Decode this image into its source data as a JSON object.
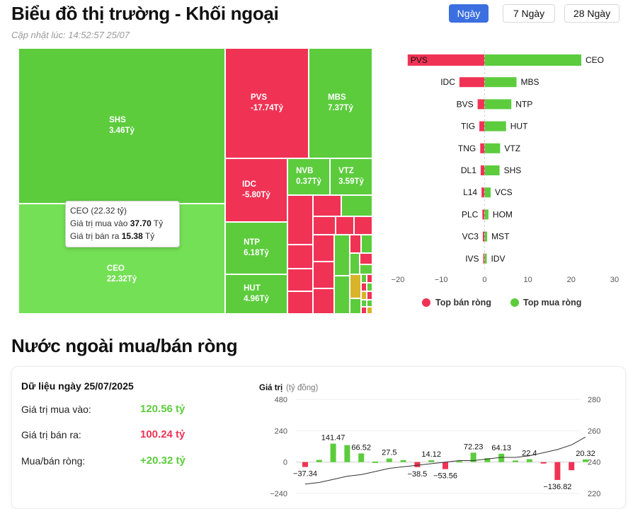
{
  "header": {
    "title": "Biểu đồ thị trường - Khối ngoại",
    "updated": "Cập nhật lúc: 14:52:57 25/07",
    "tabs": [
      {
        "label": "Ngày",
        "active": true
      },
      {
        "label": "7 Ngày",
        "active": false
      },
      {
        "label": "28 Ngày",
        "active": false
      }
    ]
  },
  "colors": {
    "buy": "#5ccc3d",
    "sell": "#f03355",
    "neutral": "#d9b32a",
    "accent": "#3b6fe0"
  },
  "treemap": {
    "tiles": [
      {
        "code": "SHS",
        "value": "3.46Tỷ",
        "side": "buy"
      },
      {
        "code": "CEO",
        "value": "22.32Tỷ",
        "side": "buy",
        "highlight": true
      },
      {
        "code": "PVS",
        "value": "-17.74Tỷ",
        "side": "sell"
      },
      {
        "code": "MBS",
        "value": "7.37Tỷ",
        "side": "buy"
      },
      {
        "code": "IDC",
        "value": "-5.80Tỷ",
        "side": "sell"
      },
      {
        "code": "NVB",
        "value": "0.37Tỷ",
        "side": "buy"
      },
      {
        "code": "VTZ",
        "value": "3.59Tỷ",
        "side": "buy"
      },
      {
        "code": "NTP",
        "value": "6.18Tỷ",
        "side": "buy"
      },
      {
        "code": "HUT",
        "value": "4.96Tỷ",
        "side": "buy"
      }
    ],
    "tooltip": {
      "heading": "CEO (22.32 tỷ)",
      "buy_label": "Giá trị mua vào",
      "buy_value": "37.70",
      "buy_unit": "Tỷ",
      "sell_label": "Giá trị bán ra",
      "sell_value": "15.38",
      "sell_unit": "Tỷ"
    }
  },
  "chart_data": [
    {
      "type": "bar",
      "orientation": "horizontal",
      "xlim": [
        -20,
        30
      ],
      "ticks": [
        -20,
        -10,
        0,
        10,
        20,
        30
      ],
      "legend": {
        "position": "bottom",
        "items": [
          {
            "name": "Top bán ròng",
            "color": "#f03355"
          },
          {
            "name": "Top mua ròng",
            "color": "#5ccc3d"
          }
        ]
      },
      "rows": [
        {
          "sell_code": "PVS",
          "sell_value": -17.74,
          "buy_code": "CEO",
          "buy_value": 22.32
        },
        {
          "sell_code": "IDC",
          "sell_value": -5.8,
          "buy_code": "MBS",
          "buy_value": 7.37
        },
        {
          "sell_code": "BVS",
          "sell_value": -1.6,
          "buy_code": "NTP",
          "buy_value": 6.18
        },
        {
          "sell_code": "TIG",
          "sell_value": -1.2,
          "buy_code": "HUT",
          "buy_value": 4.96
        },
        {
          "sell_code": "TNG",
          "sell_value": -1.0,
          "buy_code": "VTZ",
          "buy_value": 3.59
        },
        {
          "sell_code": "DL1",
          "sell_value": -0.9,
          "buy_code": "SHS",
          "buy_value": 3.46
        },
        {
          "sell_code": "L14",
          "sell_value": -0.7,
          "buy_code": "VCS",
          "buy_value": 1.4
        },
        {
          "sell_code": "PLC",
          "sell_value": -0.5,
          "buy_code": "HOM",
          "buy_value": 0.9
        },
        {
          "sell_code": "VC3",
          "sell_value": -0.4,
          "buy_code": "MST",
          "buy_value": 0.6
        },
        {
          "sell_code": "IVS",
          "sell_value": -0.3,
          "buy_code": "IDV",
          "buy_value": 0.5
        }
      ]
    },
    {
      "type": "bar",
      "title": "Giá trị",
      "unit": "(tỷ đồng)",
      "ylim": [
        -240,
        480
      ],
      "yticks": [
        -240,
        0,
        240,
        480
      ],
      "y2lim": [
        220,
        280
      ],
      "y2ticks": [
        220,
        240,
        260,
        280
      ],
      "values": [
        -37.34,
        17,
        141.47,
        130,
        66.52,
        4,
        27.5,
        15,
        -38.5,
        14.12,
        -53.56,
        8,
        72.23,
        30,
        64.13,
        12,
        22.4,
        -10,
        -136.82,
        -62,
        20.32
      ],
      "labels": [
        "-37.34",
        "",
        "141.47",
        "",
        "66.52",
        "",
        "27.5",
        "",
        "-38.5",
        "14.12",
        "-53.56",
        "",
        "72.23",
        "",
        "64.13",
        "",
        "22.4",
        "",
        "-136.82",
        "",
        "20.32"
      ],
      "line": [
        226,
        227,
        229,
        231,
        232,
        234,
        236,
        237,
        238,
        239,
        240,
        241,
        241,
        242,
        243,
        243,
        244,
        246,
        248,
        251,
        256
      ]
    }
  ],
  "summary": {
    "heading": "Dữ liệu ngày 25/07/2025",
    "rows": [
      {
        "label": "Giá trị mua vào:",
        "value": "120.56 tỷ",
        "color": "#5ccc3d"
      },
      {
        "label": "Giá trị bán ra:",
        "value": "100.24 tỷ",
        "color": "#f03355"
      },
      {
        "label": "Mua/bán ròng:",
        "value": "+20.32 tỷ",
        "color": "#5ccc3d"
      }
    ]
  },
  "section2": {
    "title": "Nước ngoài mua/bán ròng"
  }
}
